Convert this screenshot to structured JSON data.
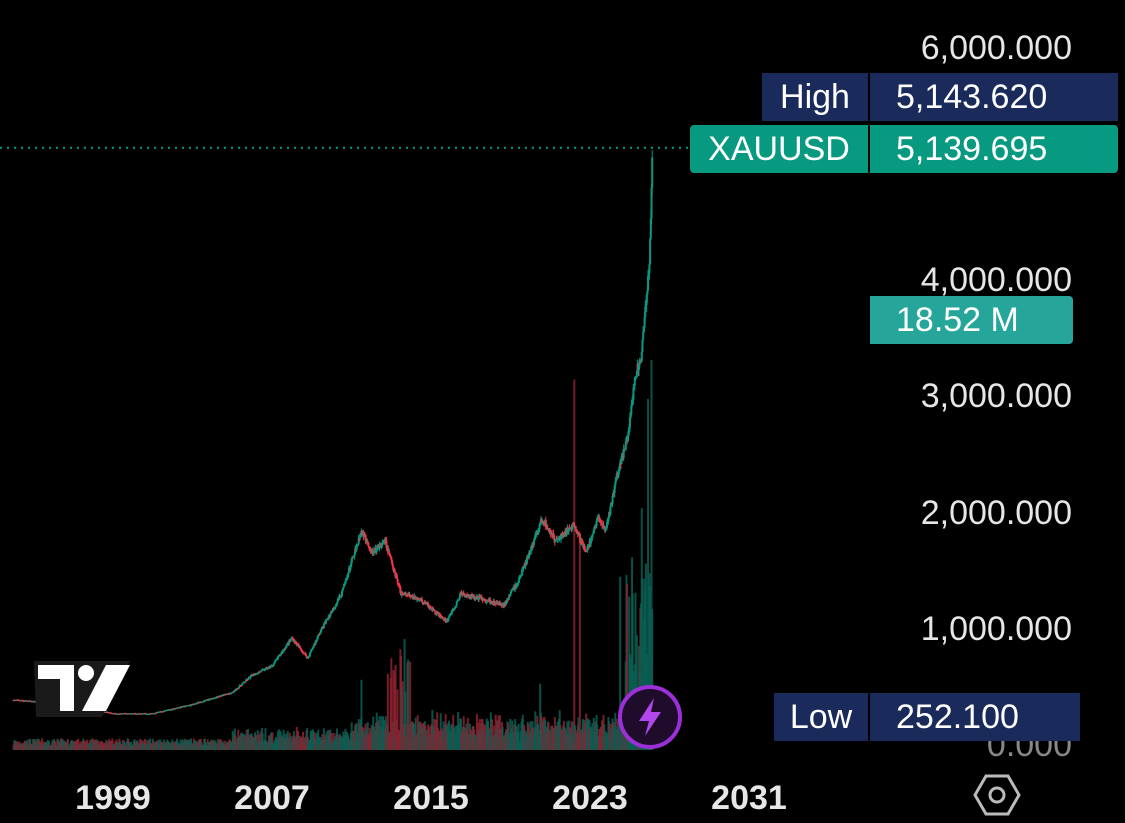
{
  "chart_data": {
    "type": "candlestick",
    "symbol": "XAUUSD",
    "x_tick_labels": [
      "1999",
      "2007",
      "2015",
      "2023",
      "2031"
    ],
    "y_tick_labels": [
      "6,000.000",
      "4,000.000",
      "3,000.000",
      "2,000.000",
      "1,000.000",
      "0.000"
    ],
    "ylim": [
      0,
      6000
    ],
    "xlim": [
      1994,
      2034
    ],
    "high": {
      "label": "High",
      "value": "5,143.620"
    },
    "low": {
      "label": "Low",
      "value": "252.100"
    },
    "last": {
      "label": "XAUUSD",
      "value": "5,139.695",
      "numeric": 5139.695
    },
    "volume_label": "18.52 M",
    "price_path": [
      [
        1994,
        385
      ],
      [
        1997,
        350
      ],
      [
        1999,
        270
      ],
      [
        2001,
        270
      ],
      [
        2003,
        350
      ],
      [
        2005,
        450
      ],
      [
        2006,
        600
      ],
      [
        2007,
        680
      ],
      [
        2008,
        920
      ],
      [
        2008.8,
        750
      ],
      [
        2009.5,
        1000
      ],
      [
        2010.5,
        1300
      ],
      [
        2011.5,
        1850
      ],
      [
        2012,
        1650
      ],
      [
        2012.7,
        1750
      ],
      [
        2013.5,
        1300
      ],
      [
        2014.5,
        1250
      ],
      [
        2015.8,
        1060
      ],
      [
        2016.5,
        1300
      ],
      [
        2017.5,
        1260
      ],
      [
        2018.7,
        1200
      ],
      [
        2019.5,
        1450
      ],
      [
        2020.6,
        1950
      ],
      [
        2021.3,
        1750
      ],
      [
        2022.2,
        1900
      ],
      [
        2022.8,
        1650
      ],
      [
        2023.4,
        1950
      ],
      [
        2023.8,
        1850
      ],
      [
        2024.4,
        2350
      ],
      [
        2024.9,
        2650
      ],
      [
        2025.3,
        3200
      ],
      [
        2025.6,
        3350
      ],
      [
        2025.8,
        3800
      ],
      [
        2026.0,
        4200
      ],
      [
        2026.15,
        5139.695
      ]
    ],
    "volume_spikes": [
      [
        2013.0,
        0.32
      ],
      [
        2013.5,
        0.3
      ],
      [
        2011.5,
        0.18
      ],
      [
        2020.5,
        0.17
      ],
      [
        2022.2,
        0.95
      ],
      [
        2022.5,
        0.55
      ],
      [
        2024.8,
        0.55
      ],
      [
        2025.3,
        0.32
      ],
      [
        2025.6,
        0.62
      ],
      [
        2025.9,
        0.9
      ],
      [
        2026.1,
        1.0
      ]
    ],
    "colors": {
      "up": "#089981",
      "down": "#f23645",
      "last_line": "#089981",
      "background": "#000000",
      "text": "#e6e6e6",
      "navy_tag": "#1a2a5a",
      "volume_tag": "#26a69a"
    }
  },
  "icons": {
    "logo": "tradingview-logo-icon",
    "flash": "lightning-icon",
    "settings": "hexagon-settings-icon"
  }
}
